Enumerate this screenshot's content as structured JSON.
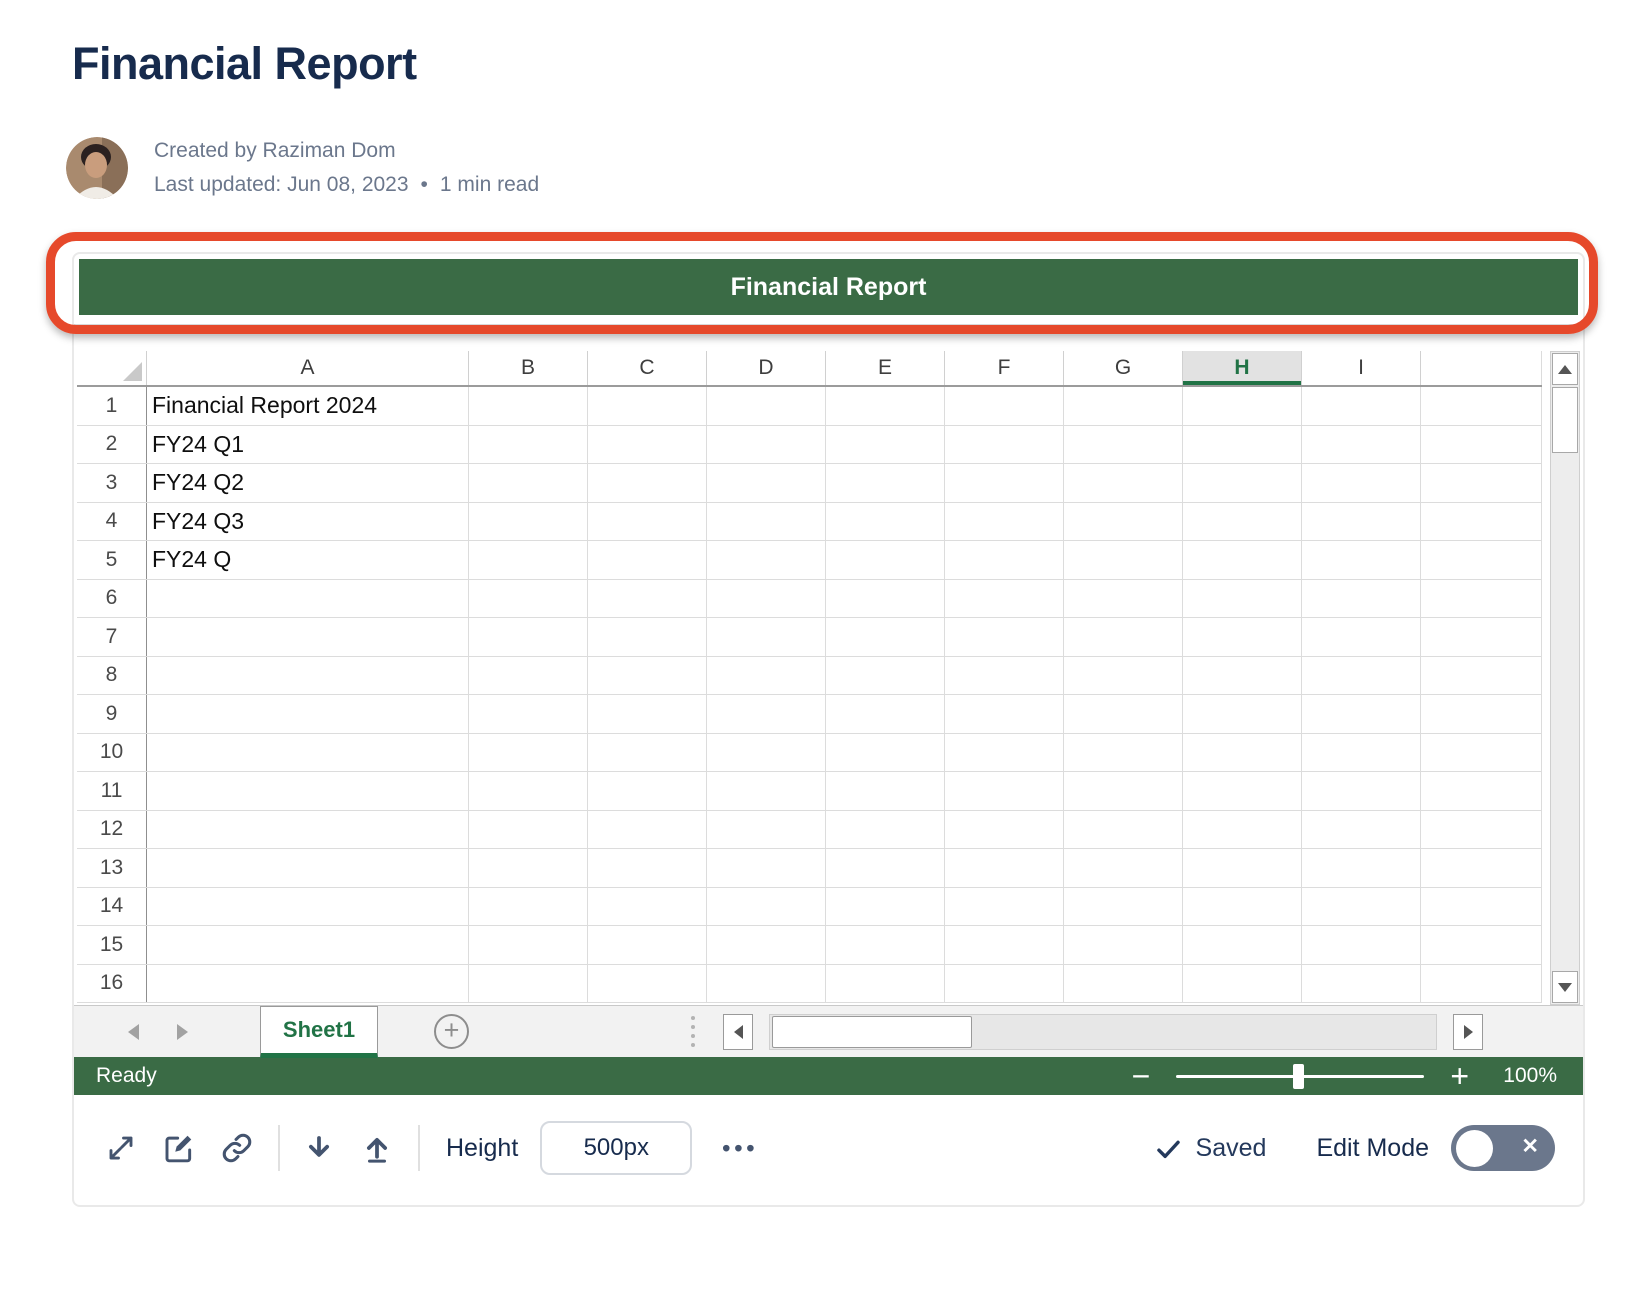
{
  "page": {
    "title": "Financial Report",
    "byline": {
      "created_by": "Created by Raziman Dom",
      "last_updated": "Last updated: Jun 08, 2023",
      "dot_separator": "•",
      "read_time": "1 min read"
    }
  },
  "embed": {
    "title_bar": "Financial Report",
    "spreadsheet": {
      "column_headers": [
        "A",
        "B",
        "C",
        "D",
        "E",
        "F",
        "G",
        "H",
        "I"
      ],
      "selected_column": "H",
      "row_numbers": [
        "1",
        "2",
        "3",
        "4",
        "5",
        "6",
        "7",
        "8",
        "9",
        "10",
        "11",
        "12",
        "13",
        "14",
        "15",
        "16"
      ],
      "cells": {
        "A1": "Financial Report 2024",
        "A2": "FY24 Q1",
        "A3": "FY24 Q2",
        "A4": "FY24 Q3",
        "A5": "FY24 Q"
      },
      "sheet_tabs": [
        {
          "label": "Sheet1",
          "active": true
        }
      ],
      "status": "Ready",
      "zoom_level": "100%"
    },
    "toolbar": {
      "height_label": "Height",
      "height_value": "500px",
      "more_glyph": "•••",
      "saved_label": "Saved",
      "edit_mode_label": "Edit Mode"
    },
    "icons": {
      "add_sheet": "+",
      "toggle_close": "✕",
      "zoom_out": "−",
      "zoom_in": "+"
    },
    "colors": {
      "bar_green": "#3A6B45",
      "accent_green": "#217346",
      "annotation_red": "#E6492B",
      "icon_slate": "#44546F"
    }
  }
}
